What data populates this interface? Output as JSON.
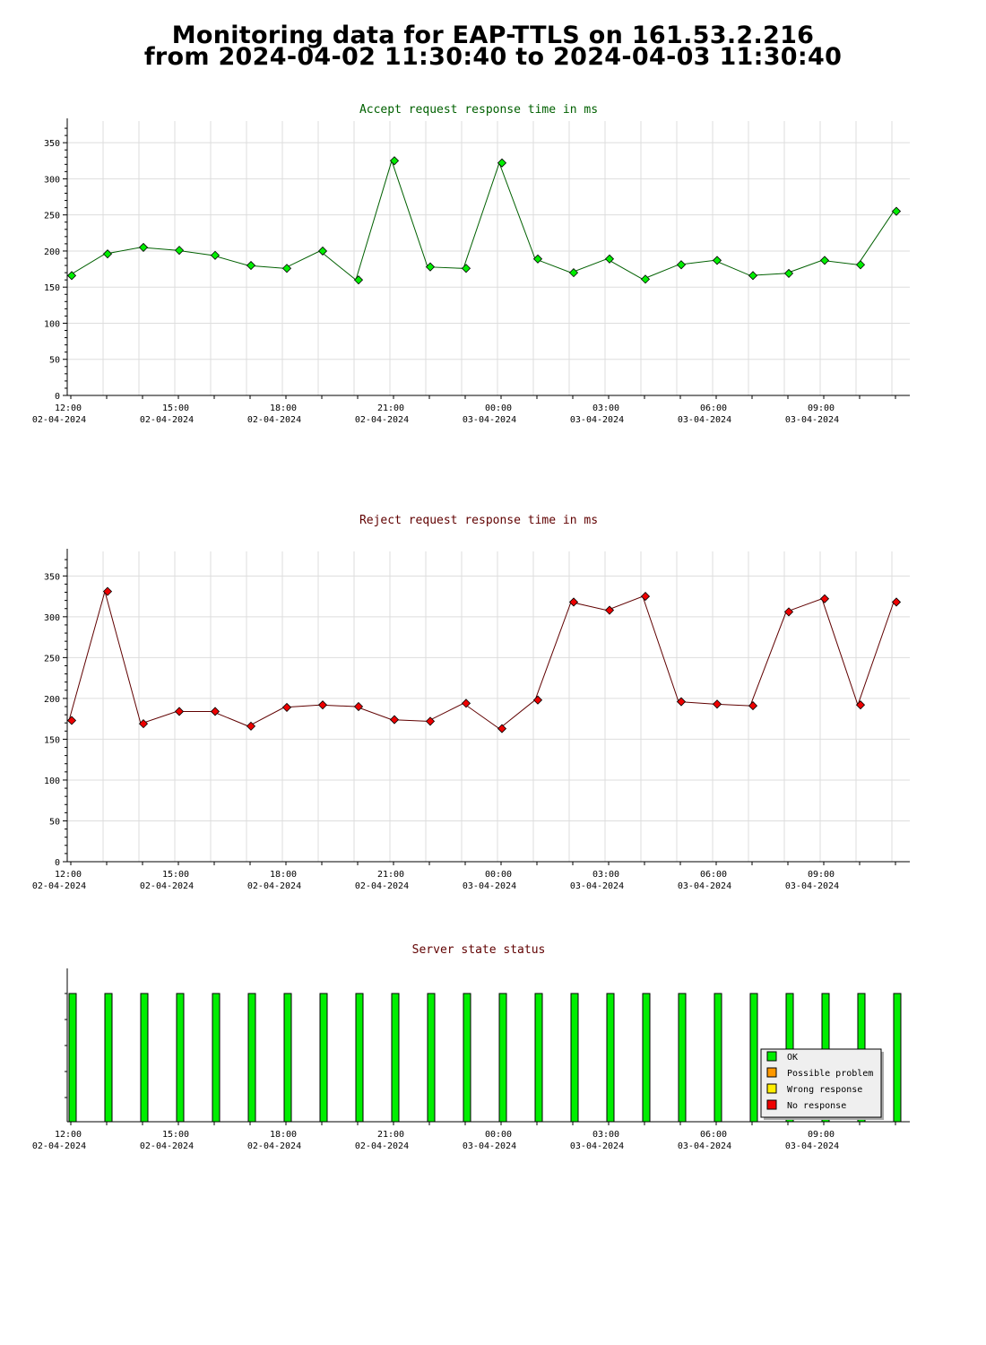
{
  "page_title": {
    "line1": "Monitoring data for EAP-TTLS on 161.53.2.216",
    "line2": "from 2024-04-02 11:30:40 to 2024-04-03 11:30:40"
  },
  "colors": {
    "accept_line": "#006000",
    "accept_marker": "#00ee00",
    "reject_line": "#600000",
    "reject_marker": "#ee0000",
    "status_ok": "#00ee00",
    "status_possible_problem": "#ff9900",
    "status_wrong_response": "#ffee00",
    "status_no_response": "#ee0000",
    "grid": "#dddddd"
  },
  "time_ticks": [
    {
      "time": "12:00",
      "date": "02-04-2024"
    },
    {
      "time": "15:00",
      "date": "02-04-2024"
    },
    {
      "time": "18:00",
      "date": "02-04-2024"
    },
    {
      "time": "21:00",
      "date": "02-04-2024"
    },
    {
      "time": "00:00",
      "date": "03-04-2024"
    },
    {
      "time": "03:00",
      "date": "03-04-2024"
    },
    {
      "time": "06:00",
      "date": "03-04-2024"
    },
    {
      "time": "09:00",
      "date": "03-04-2024"
    }
  ],
  "chart_data": [
    {
      "type": "line",
      "title": "Accept request response time in ms",
      "x": [
        "12:00",
        "13:00",
        "14:00",
        "15:00",
        "16:00",
        "17:00",
        "18:00",
        "19:00",
        "20:00",
        "21:00",
        "22:00",
        "23:00",
        "00:00",
        "01:00",
        "02:00",
        "03:00",
        "04:00",
        "05:00",
        "06:00",
        "07:00",
        "08:00",
        "09:00",
        "10:00",
        "11:00"
      ],
      "values": [
        166,
        196,
        205,
        201,
        194,
        180,
        176,
        200,
        160,
        325,
        178,
        176,
        322,
        189,
        170,
        189,
        161,
        181,
        187,
        166,
        169,
        187,
        181,
        255
      ],
      "ylim": [
        0,
        380
      ],
      "yticks": [
        0,
        50,
        100,
        150,
        200,
        250,
        300,
        350
      ],
      "grid": true
    },
    {
      "type": "line",
      "title": "Reject request response time in ms",
      "x": [
        "12:00",
        "13:00",
        "14:00",
        "15:00",
        "16:00",
        "17:00",
        "18:00",
        "19:00",
        "20:00",
        "21:00",
        "22:00",
        "23:00",
        "00:00",
        "01:00",
        "02:00",
        "03:00",
        "04:00",
        "05:00",
        "06:00",
        "07:00",
        "08:00",
        "09:00",
        "10:00",
        "11:00"
      ],
      "values": [
        173,
        331,
        169,
        184,
        184,
        166,
        189,
        192,
        190,
        174,
        172,
        194,
        163,
        198,
        318,
        308,
        325,
        196,
        193,
        191,
        306,
        322,
        192,
        318
      ],
      "ylim": [
        0,
        380
      ],
      "yticks": [
        0,
        50,
        100,
        150,
        200,
        250,
        300,
        350
      ],
      "grid": true
    },
    {
      "type": "bar",
      "title": "Server state status",
      "x": [
        "12:00",
        "13:00",
        "14:00",
        "15:00",
        "16:00",
        "17:00",
        "18:00",
        "19:00",
        "20:00",
        "21:00",
        "22:00",
        "23:00",
        "00:00",
        "01:00",
        "02:00",
        "03:00",
        "04:00",
        "05:00",
        "06:00",
        "07:00",
        "08:00",
        "09:00",
        "10:00",
        "11:00"
      ],
      "status": [
        "OK",
        "OK",
        "OK",
        "OK",
        "OK",
        "OK",
        "OK",
        "OK",
        "OK",
        "OK",
        "OK",
        "OK",
        "OK",
        "OK",
        "OK",
        "OK",
        "OK",
        "OK",
        "OK",
        "OK",
        "OK",
        "OK",
        "OK",
        "OK"
      ],
      "legend": [
        "OK",
        "Possible problem",
        "Wrong response",
        "No response"
      ],
      "legend_position": "bottom-right"
    }
  ]
}
